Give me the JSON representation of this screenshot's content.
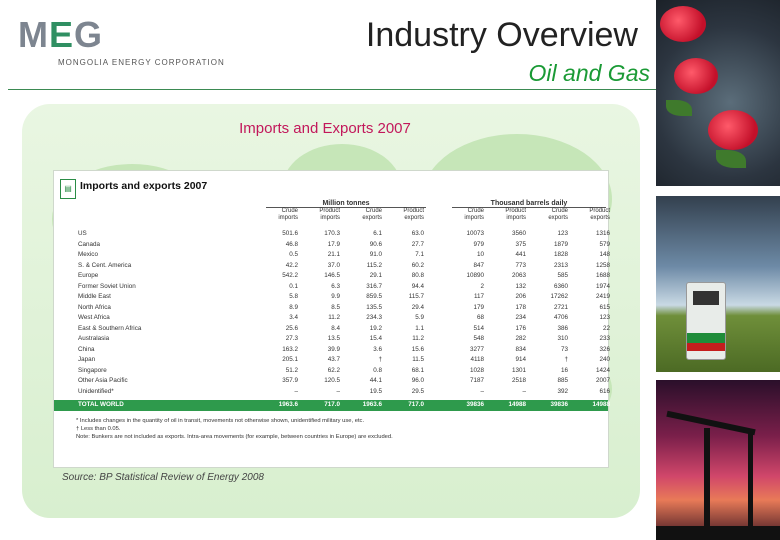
{
  "header": {
    "logo_mark_a": "M",
    "logo_mark_b": "E",
    "logo_mark_c": "G",
    "logo_sub": "MONGOLIA ENERGY CORPORATION",
    "title": "Industry Overview",
    "subtitle": "Oil and Gas"
  },
  "caption": "Imports and Exports 2007",
  "source": "Source: BP Statistical Review of Energy 2008",
  "table": {
    "title": "Imports and exports 2007",
    "group_million": "Million tonnes",
    "group_barrels": "Thousand barrels daily",
    "col_headers": [
      "Crude imports",
      "Product imports",
      "Crude exports",
      "Product exports",
      "Crude imports",
      "Product imports",
      "Crude exports",
      "Product exports"
    ],
    "rows": [
      {
        "label": "US",
        "values": [
          "501.6",
          "170.3",
          "6.1",
          "63.0",
          "10073",
          "3560",
          "123",
          "1316"
        ]
      },
      {
        "label": "Canada",
        "values": [
          "46.8",
          "17.9",
          "90.6",
          "27.7",
          "979",
          "375",
          "1879",
          "579"
        ]
      },
      {
        "label": "Mexico",
        "values": [
          "0.5",
          "21.1",
          "91.0",
          "7.1",
          "10",
          "441",
          "1828",
          "148"
        ]
      },
      {
        "label": "S. & Cent. America",
        "values": [
          "42.2",
          "37.0",
          "115.2",
          "60.2",
          "847",
          "773",
          "2313",
          "1258"
        ]
      },
      {
        "label": "Europe",
        "values": [
          "542.2",
          "146.5",
          "29.1",
          "80.8",
          "10890",
          "2063",
          "585",
          "1688"
        ]
      },
      {
        "label": "Former Soviet Union",
        "values": [
          "0.1",
          "6.3",
          "316.7",
          "94.4",
          "2",
          "132",
          "6360",
          "1974"
        ]
      },
      {
        "label": "Middle East",
        "values": [
          "5.8",
          "9.9",
          "859.5",
          "115.7",
          "117",
          "206",
          "17262",
          "2419"
        ]
      },
      {
        "label": "North Africa",
        "values": [
          "8.9",
          "8.5",
          "135.5",
          "29.4",
          "179",
          "178",
          "2721",
          "615"
        ]
      },
      {
        "label": "West Africa",
        "values": [
          "3.4",
          "11.2",
          "234.3",
          "5.9",
          "68",
          "234",
          "4706",
          "123"
        ]
      },
      {
        "label": "East & Southern Africa",
        "values": [
          "25.6",
          "8.4",
          "19.2",
          "1.1",
          "514",
          "176",
          "386",
          "22"
        ]
      },
      {
        "label": "Australasia",
        "values": [
          "27.3",
          "13.5",
          "15.4",
          "11.2",
          "548",
          "282",
          "310",
          "233"
        ]
      },
      {
        "label": "China",
        "values": [
          "163.2",
          "39.9",
          "3.6",
          "15.6",
          "3277",
          "834",
          "73",
          "326"
        ]
      },
      {
        "label": "Japan",
        "values": [
          "205.1",
          "43.7",
          "†",
          "11.5",
          "4118",
          "914",
          "†",
          "240"
        ]
      },
      {
        "label": "Singapore",
        "values": [
          "51.2",
          "62.2",
          "0.8",
          "68.1",
          "1028",
          "1301",
          "16",
          "1424"
        ]
      },
      {
        "label": "Other Asia Pacific",
        "values": [
          "357.9",
          "120.5",
          "44.1",
          "96.0",
          "7187",
          "2518",
          "885",
          "2007"
        ]
      },
      {
        "label": "Unidentified*",
        "values": [
          "–",
          "–",
          "19.5",
          "29.5",
          "–",
          "–",
          "392",
          "616"
        ]
      }
    ],
    "total": {
      "label": "TOTAL WORLD",
      "values": [
        "1963.6",
        "717.0",
        "1963.6",
        "717.0",
        "39836",
        "14988",
        "39836",
        "14988"
      ]
    },
    "notes": [
      "* Includes changes in the quantity of oil in transit, movements not otherwise shown, unidentified military use, etc.",
      "† Less than 0.05.",
      "Note: Bunkers are not included as exports. Intra-area movements (for example, between countries in Europe) are excluded."
    ]
  },
  "colors": {
    "accent_green": "#1a9a35",
    "caption_pink": "#c2185b",
    "total_row": "#2e9a4c"
  },
  "photos": [
    "roses-on-manhole-photo",
    "fuel-pump-photo",
    "oil-pumpjack-sunset-photo"
  ]
}
